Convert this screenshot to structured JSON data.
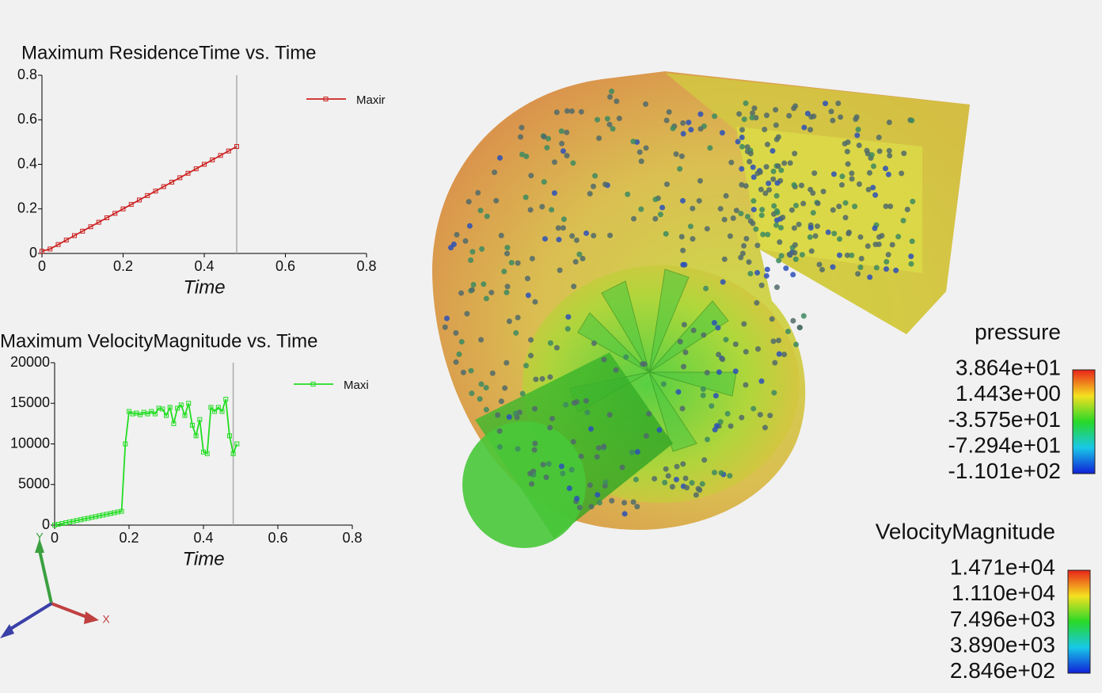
{
  "chart_data": [
    {
      "type": "line",
      "title": "Maximum ResidenceTime vs. Time",
      "x_label": "Time",
      "x": [
        0,
        0.02,
        0.04,
        0.06,
        0.08,
        0.1,
        0.12,
        0.14,
        0.16,
        0.18,
        0.2,
        0.22,
        0.24,
        0.26,
        0.28,
        0.3,
        0.32,
        0.34,
        0.36,
        0.38,
        0.4,
        0.42,
        0.44,
        0.46,
        0.48
      ],
      "series": [
        {
          "name": "Maxir",
          "color": "#cc2222",
          "values": [
            0.01,
            0.02,
            0.04,
            0.06,
            0.08,
            0.1,
            0.12,
            0.14,
            0.16,
            0.18,
            0.2,
            0.22,
            0.24,
            0.26,
            0.28,
            0.3,
            0.32,
            0.34,
            0.36,
            0.38,
            0.4,
            0.42,
            0.44,
            0.46,
            0.48
          ]
        }
      ],
      "xlim": [
        0,
        0.8
      ],
      "ylim": [
        0,
        0.8
      ],
      "xticks": [
        0,
        0.2,
        0.4,
        0.6,
        0.8
      ],
      "yticks": [
        0,
        0.2,
        0.4,
        0.6,
        0.8
      ],
      "time_marker": 0.48
    },
    {
      "type": "line",
      "title": "Maximum VelocityMagnitude vs. Time",
      "x_label": "Time",
      "x": [
        0,
        0.01,
        0.02,
        0.03,
        0.04,
        0.05,
        0.06,
        0.07,
        0.08,
        0.09,
        0.1,
        0.11,
        0.12,
        0.13,
        0.14,
        0.15,
        0.16,
        0.17,
        0.18,
        0.19,
        0.2,
        0.21,
        0.22,
        0.23,
        0.24,
        0.25,
        0.26,
        0.27,
        0.28,
        0.29,
        0.3,
        0.31,
        0.32,
        0.33,
        0.34,
        0.35,
        0.36,
        0.37,
        0.38,
        0.39,
        0.4,
        0.41,
        0.42,
        0.43,
        0.44,
        0.45,
        0.46,
        0.47,
        0.48,
        0.49
      ],
      "series": [
        {
          "name": "Maxi",
          "color": "#22dd22",
          "values": [
            0,
            100,
            190,
            290,
            380,
            470,
            570,
            660,
            760,
            850,
            950,
            1040,
            1140,
            1230,
            1330,
            1420,
            1520,
            1610,
            1700,
            10000,
            14000,
            13700,
            13800,
            13600,
            13900,
            13700,
            14000,
            13700,
            14400,
            14300,
            13500,
            14500,
            12500,
            14400,
            14800,
            13500,
            15000,
            12300,
            11000,
            13000,
            9000,
            8800,
            14500,
            14000,
            14500,
            14000,
            15500,
            11000,
            8800,
            10000
          ]
        }
      ],
      "xlim": [
        0,
        0.8
      ],
      "ylim": [
        0,
        20000
      ],
      "xticks": [
        0,
        0.2,
        0.4,
        0.6,
        0.8
      ],
      "yticks": [
        0,
        5000,
        10000,
        15000,
        20000
      ],
      "time_marker": 0.48
    }
  ],
  "scene": {
    "colorbars": [
      {
        "title": "pressure",
        "labels": [
          "3.864e+01",
          "1.443e+00",
          "-3.575e+01",
          "-7.294e+01",
          "-1.101e+02"
        ]
      },
      {
        "title": "VelocityMagnitude",
        "labels": [
          "1.471e+04",
          "1.110e+04",
          "7.496e+03",
          "3.890e+03",
          "2.846e+02"
        ]
      }
    ],
    "axes": {
      "x": "X",
      "y": "Y"
    }
  }
}
